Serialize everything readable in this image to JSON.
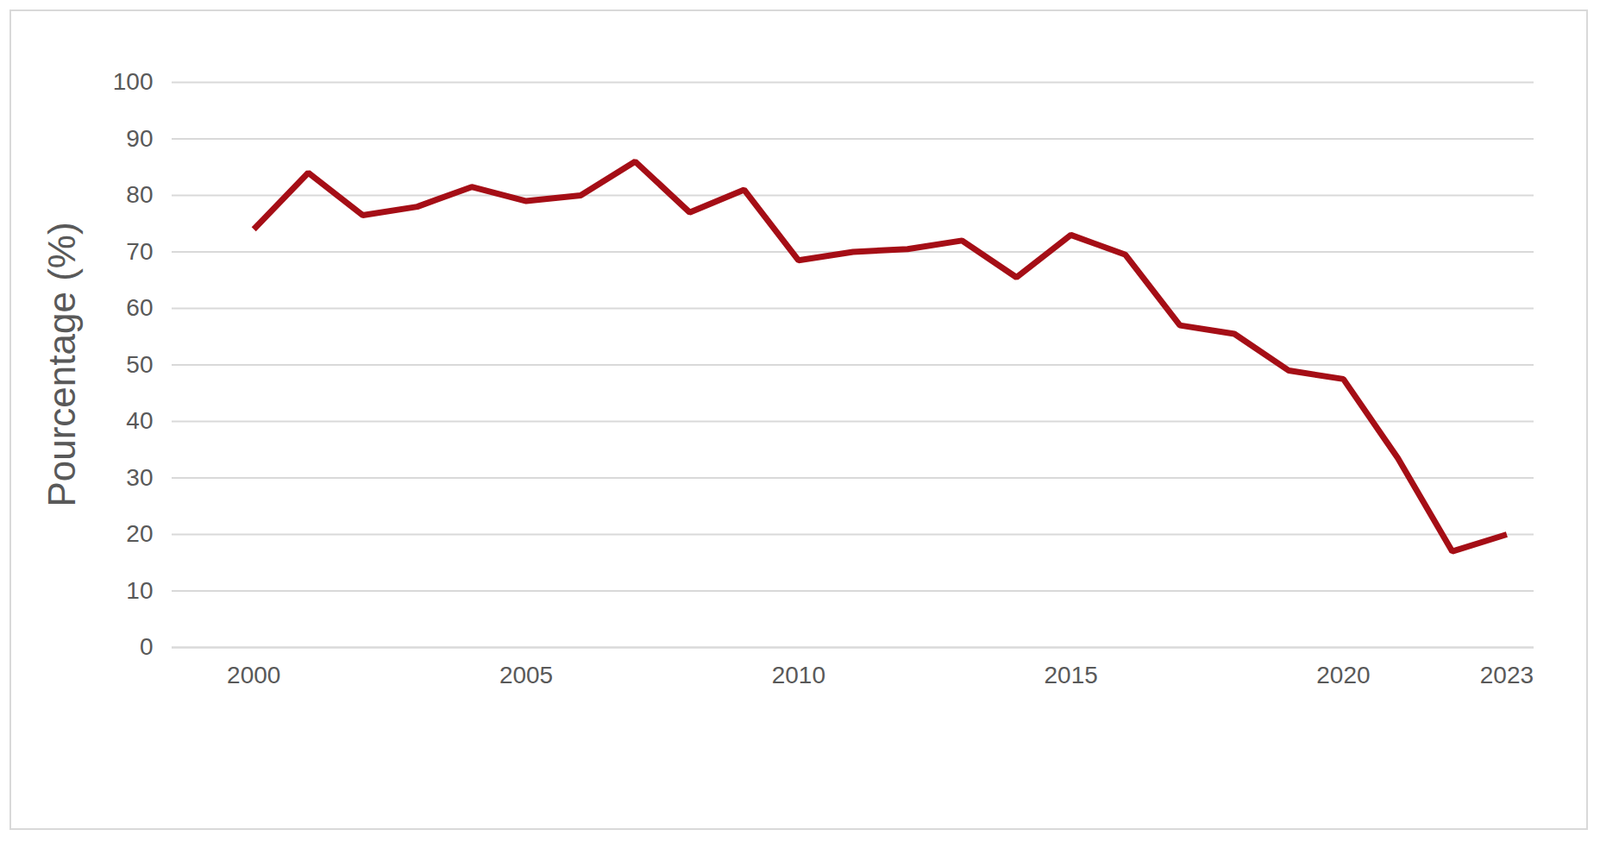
{
  "chart_data": {
    "type": "line",
    "y_label": "Pourcentage (%)",
    "x": [
      2000,
      2001,
      2002,
      2003,
      2004,
      2005,
      2006,
      2007,
      2008,
      2009,
      2010,
      2011,
      2012,
      2013,
      2014,
      2015,
      2016,
      2017,
      2018,
      2019,
      2020,
      2021,
      2022,
      2023
    ],
    "values": [
      74,
      84,
      76.5,
      78,
      81.5,
      79,
      80,
      86,
      77,
      81,
      68.5,
      70,
      70.5,
      72,
      65.5,
      73,
      69.5,
      57,
      55.5,
      49,
      47.5,
      33.5,
      17,
      20
    ],
    "color": "#a50e16",
    "xlim": [
      1998.5,
      2023.5
    ],
    "xticks": [
      2000,
      2005,
      2010,
      2015,
      2020,
      2023
    ],
    "ylim": [
      0,
      100
    ],
    "yticks": [
      0,
      10,
      20,
      30,
      40,
      50,
      60,
      70,
      80,
      90,
      100
    ],
    "grid": true
  }
}
